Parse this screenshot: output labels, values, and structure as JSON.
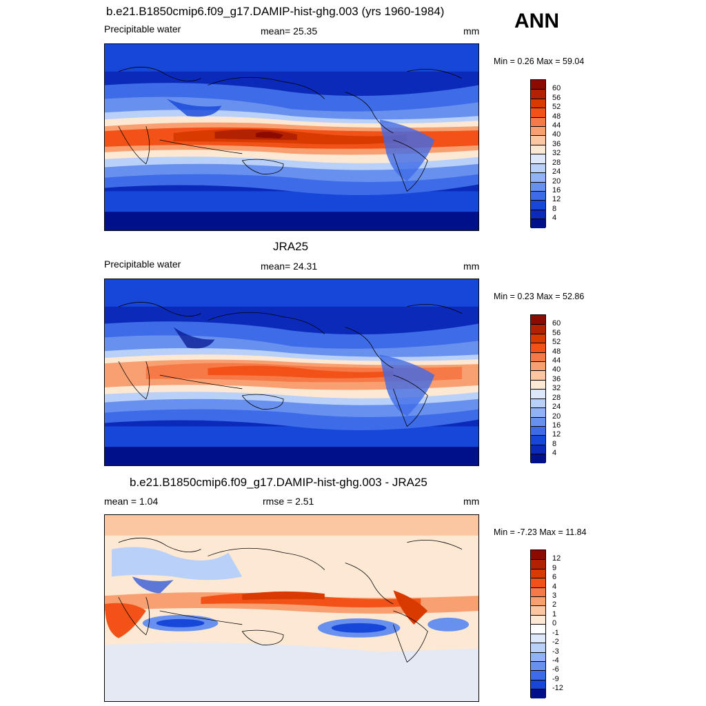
{
  "corner_label": "ANN",
  "panels": [
    {
      "title": "b.e21.B1850cmip6.f09_g17.DAMIP-hist-ghg.003 (yrs 1960-1984)",
      "left_label": "Precipitable water",
      "center_label": "mean=  25.35",
      "units": "mm",
      "minmax": "Min =   0.26 Max =  59.04",
      "colorbar_ticks": [
        "60",
        "56",
        "52",
        "48",
        "44",
        "40",
        "36",
        "32",
        "28",
        "24",
        "20",
        "16",
        "12",
        "8",
        "4"
      ],
      "colors": [
        "#8c0a00",
        "#b32200",
        "#d93a00",
        "#f25217",
        "#f57a47",
        "#f8a071",
        "#fbc6a2",
        "#fde8d4",
        "#dde9fb",
        "#b9d0f9",
        "#91b2f4",
        "#6890ee",
        "#3e6ce8",
        "#1747d9",
        "#0b2aba",
        "#000f8a"
      ]
    },
    {
      "title": "JRA25",
      "left_label": "Precipitable water",
      "center_label": "mean=  24.31",
      "units": "mm",
      "minmax": "Min =   0.23 Max =  52.86",
      "colorbar_ticks": [
        "60",
        "56",
        "52",
        "48",
        "44",
        "40",
        "36",
        "32",
        "28",
        "24",
        "20",
        "16",
        "12",
        "8",
        "4"
      ],
      "colors": [
        "#8c0a00",
        "#b32200",
        "#d93a00",
        "#f25217",
        "#f57a47",
        "#f8a071",
        "#fbc6a2",
        "#fde8d4",
        "#dde9fb",
        "#b9d0f9",
        "#91b2f4",
        "#6890ee",
        "#3e6ce8",
        "#1747d9",
        "#0b2aba",
        "#000f8a"
      ]
    },
    {
      "title": "b.e21.B1850cmip6.f09_g17.DAMIP-hist-ghg.003 - JRA25",
      "left_label": "mean =    1.04",
      "center_label": "rmse =    2.51",
      "units": "mm",
      "minmax": "Min =  -7.23 Max =  11.84",
      "colorbar_ticks": [
        "12",
        "9",
        "6",
        "4",
        "3",
        "2",
        "1",
        "0",
        "-1",
        "-2",
        "-3",
        "-4",
        "-6",
        "-9",
        "-12"
      ],
      "colors": [
        "#8c0a00",
        "#b32200",
        "#d93a00",
        "#f25217",
        "#f57a47",
        "#f8a071",
        "#fbc6a2",
        "#fde8d4",
        "#ffffff",
        "#dde9fb",
        "#b9d0f9",
        "#91b2f4",
        "#6890ee",
        "#3e6ce8",
        "#1747d9",
        "#000f8a"
      ]
    }
  ]
}
